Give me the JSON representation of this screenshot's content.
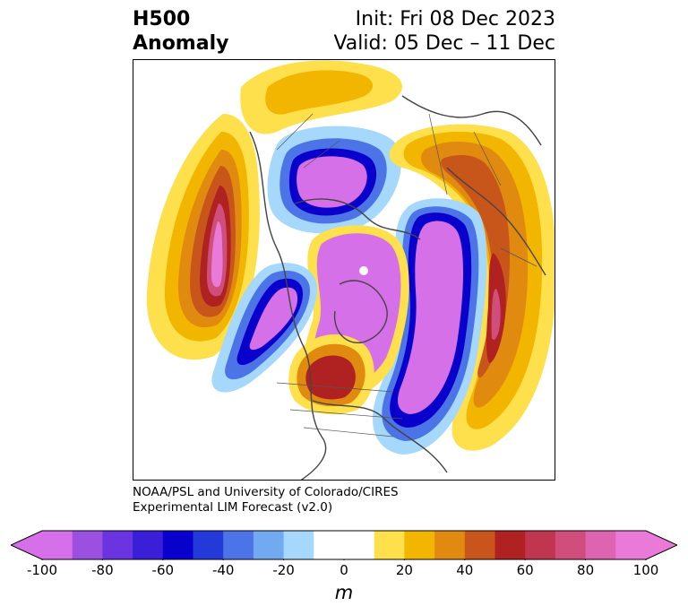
{
  "title": {
    "variable": "H500",
    "type": "Anomaly",
    "init": "Init: Fri 08 Dec 2023",
    "valid": "Valid: 05 Dec – 11 Dec"
  },
  "credit": {
    "line1": "NOAA/PSL and University of Colorado/CIRES",
    "line2": "Experimental LIM Forecast (v2.0)"
  },
  "colorbar": {
    "unit": "m",
    "ticks": [
      "-100",
      "-80",
      "-60",
      "-40",
      "-20",
      "0",
      "20",
      "40",
      "60",
      "80",
      "100"
    ],
    "low_color": "#d670e8",
    "high_color": "#e97ad8",
    "colors": [
      "#d670e8",
      "#9c50e0",
      "#6a34e0",
      "#3a1ed8",
      "#0a00cc",
      "#243ad8",
      "#4c74e6",
      "#72aaf0",
      "#a6d8fb",
      "#ffffff",
      "#ffffff",
      "#fde04c",
      "#f2b500",
      "#e08a10",
      "#c8561a",
      "#b02222",
      "#c03650",
      "#d04e7c",
      "#dc64b0",
      "#e97ad8"
    ]
  },
  "map": {
    "projection": "north-polar-stereographic",
    "features": [
      "coastlines",
      "country-borders",
      "state-borders"
    ],
    "anomaly_centers": [
      {
        "region": "North Pacific / Gulf of Alaska",
        "sign": "positive"
      },
      {
        "region": "Eastern Siberia",
        "sign": "negative"
      },
      {
        "region": "Western Europe / North Atlantic",
        "sign": "positive"
      },
      {
        "region": "Scandinavia / Western Russia",
        "sign": "negative"
      },
      {
        "region": "Arctic Ocean / Greenland",
        "sign": "negative"
      },
      {
        "region": "Central Canada",
        "sign": "positive"
      },
      {
        "region": "Eastern North Pacific",
        "sign": "negative"
      },
      {
        "region": "Central Asia",
        "sign": "positive"
      }
    ]
  }
}
